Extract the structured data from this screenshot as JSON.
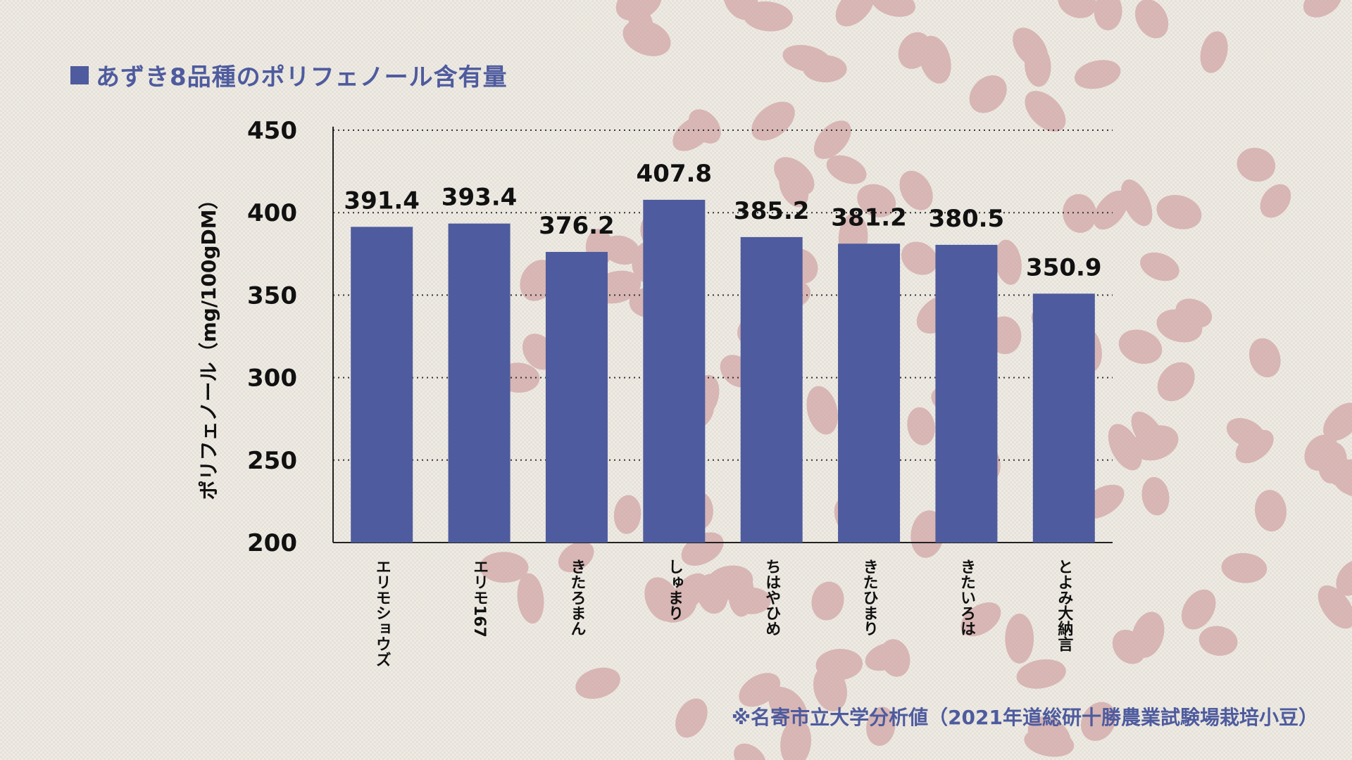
{
  "title": "あずき8品種のポリフェノール含有量",
  "footnote": "※名寄市立大学分析値（2021年道総研十勝農業試験場栽培小豆）",
  "colors": {
    "bar": "#4e5b9e",
    "title": "#4e5b9e",
    "text": "#111111"
  },
  "chart_data": {
    "type": "bar",
    "title": "あずき8品種のポリフェノール含有量",
    "xlabel": "",
    "ylabel": "ポリフェノール（mg/100gDM）",
    "categories": [
      "エリモショウズ",
      "エリモ167",
      "きたろまん",
      "しゅまり",
      "ちはやひめ",
      "きたひまり",
      "きたいろは",
      "とよみ大納言"
    ],
    "values": [
      391.4,
      393.4,
      376.2,
      407.8,
      385.2,
      381.2,
      380.5,
      350.9
    ],
    "ylim": [
      200,
      450
    ],
    "yticks": [
      200,
      250,
      300,
      350,
      400,
      450
    ],
    "grid": true,
    "legend": "none"
  }
}
